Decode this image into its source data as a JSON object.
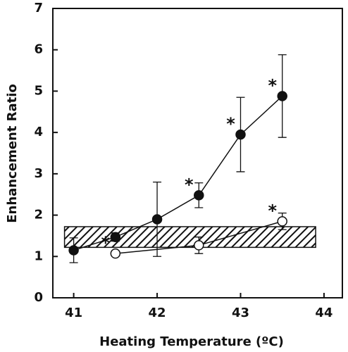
{
  "chart_data": {
    "type": "scatter-line",
    "xlabel": "Heating Temperature (ºC)",
    "ylabel": "Enhancement Ratio",
    "xlim": [
      40.75,
      44.22
    ],
    "ylim": [
      0,
      7
    ],
    "xticks": [
      41,
      42,
      43,
      44
    ],
    "yticks": [
      0,
      1,
      2,
      3,
      4,
      5,
      6,
      7
    ],
    "band": {
      "x": [
        40.89,
        43.9
      ],
      "y": [
        1.22,
        1.72
      ]
    },
    "series": [
      {
        "marker": "filled",
        "color": "#111111",
        "x": [
          41,
          41.5,
          42,
          42.5,
          43,
          43.5
        ],
        "values": [
          1.15,
          1.47,
          1.9,
          2.48,
          3.95,
          4.88
        ],
        "errors": [
          0.3,
          0.1,
          0.9,
          0.3,
          0.9,
          1.0
        ],
        "significance": [
          null,
          null,
          null,
          "*",
          "*",
          "*"
        ]
      },
      {
        "marker": "open",
        "color": "#111111",
        "x": [
          41.5,
          42.5,
          43.5
        ],
        "values": [
          1.07,
          1.27,
          1.85
        ],
        "errors": [
          0.05,
          0.2,
          0.2
        ],
        "significance": [
          "*",
          null,
          "*"
        ]
      }
    ]
  }
}
